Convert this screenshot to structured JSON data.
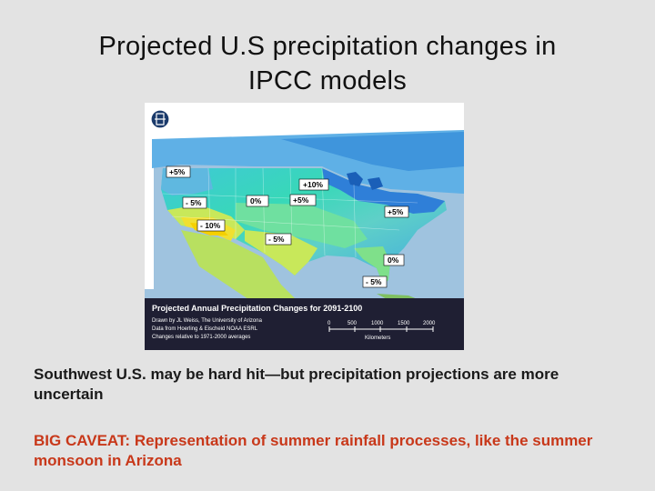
{
  "slide": {
    "title_line1": "Projected U.S precipitation changes in",
    "title_line2": "IPCC models",
    "body_text": "Southwest U.S. may be hard hit—but precipitation projections are more uncertain",
    "caveat_text": "BIG CAVEAT: Representation of summer rainfall processes, like the summer monsoon in Arizona"
  },
  "map": {
    "labels": {
      "pacific_nw": "+5%",
      "northeast_lakes": "+10%",
      "great_basin": "- 5%",
      "rockies": "0%",
      "central_plains": "+5%",
      "mid_atlantic": "+5%",
      "southwest": "- 10%",
      "texas": "- 5%",
      "florida": "0%",
      "caribbean": "- 5%"
    },
    "caption": {
      "title": "Projected Annual Precipitation Changes for 2091-2100",
      "line1": "Drawn by JL Weiss, The University of Arizona",
      "line2": "Data from Hoerling & Eischeid NOAA ESRL",
      "line3": "Changes relative to 1971-2000 averages"
    },
    "scale": {
      "ticks": [
        "0",
        "500",
        "1000",
        "1500",
        "2000"
      ],
      "unit": "Kilometers"
    },
    "colors": {
      "ocean_dark": "#1a1a2e",
      "ocean_blue": "#9fc3df",
      "wet_blue": "#2f7fd8",
      "light_blue": "#5fb0e6",
      "cyan": "#3fc9d6",
      "teal": "#38d8b8",
      "green": "#7fe08a",
      "yellow_green": "#c8e85a",
      "yellow": "#f0e030",
      "dry_yellow": "#f5d000"
    }
  }
}
